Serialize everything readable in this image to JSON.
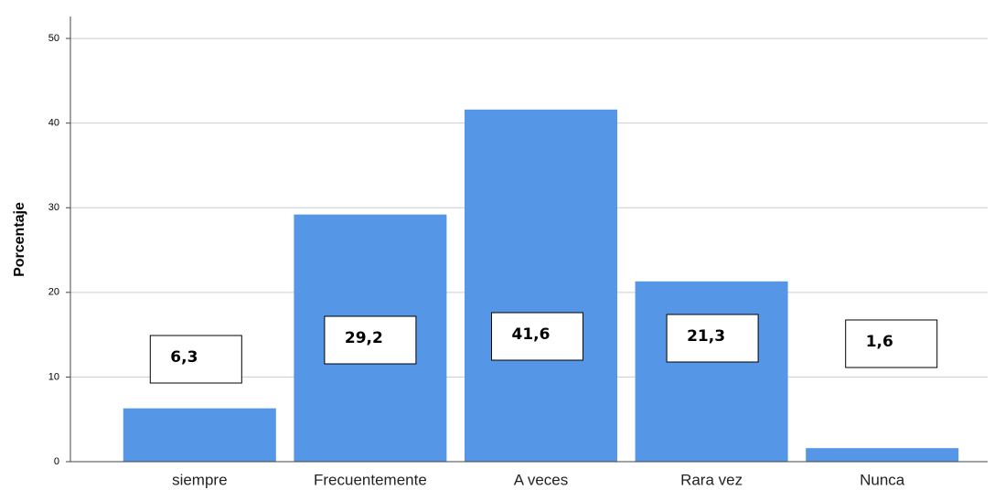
{
  "chart_data": {
    "type": "bar",
    "y_label": "Porcentaje",
    "categories": [
      "siempre",
      "Frecuentemente",
      "A veces",
      "Rara vez",
      "Nunca"
    ],
    "values": [
      6.3,
      29.2,
      41.6,
      21.3,
      1.6
    ],
    "value_labels": [
      "6,3",
      "29,2",
      "41,6",
      "21,3",
      "1,6"
    ],
    "color": "#5596e6",
    "ylim": [
      0,
      52.6
    ],
    "yticks": [
      0,
      10,
      20,
      30,
      40,
      50
    ],
    "grid": true
  }
}
